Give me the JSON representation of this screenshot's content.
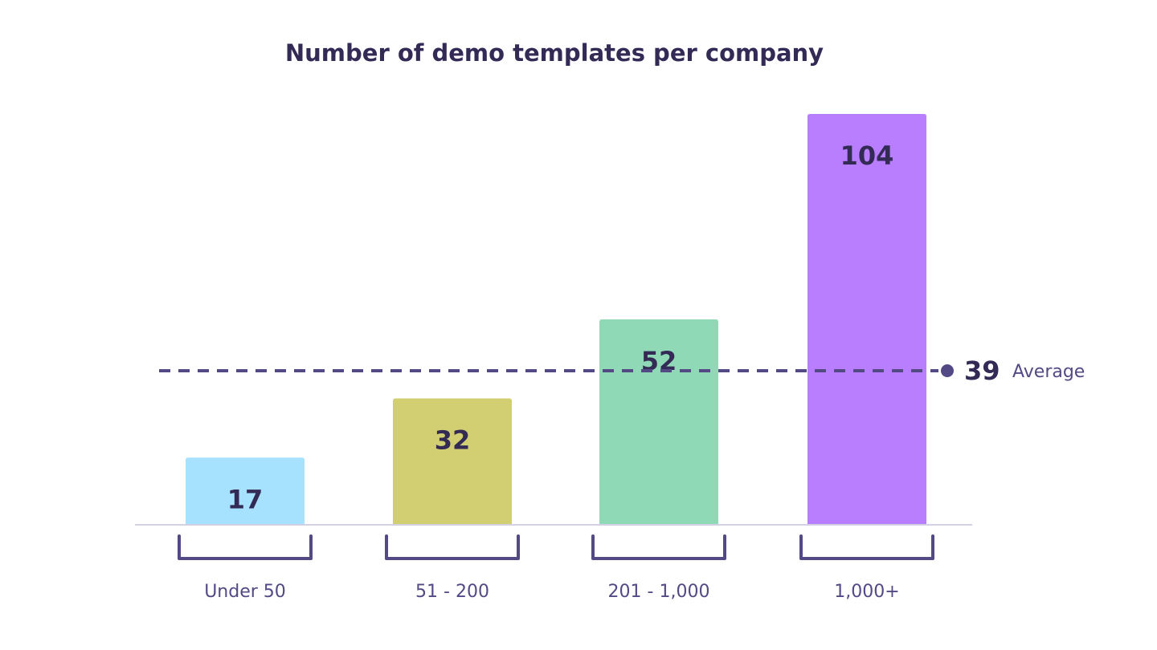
{
  "chart_data": {
    "type": "bar",
    "title": "Number of demo templates per company",
    "xlabel": "",
    "ylabel": "",
    "categories": [
      "Under 50",
      "51 - 200",
      "201 - 1,000",
      "1,000+"
    ],
    "values": [
      17,
      32,
      52,
      104
    ],
    "value_labels": [
      "17",
      "32",
      "52",
      "104"
    ],
    "bar_colors": [
      "#a6e1fe",
      "#d2cf72",
      "#90d9b7",
      "#b97efe"
    ],
    "ylim": [
      0,
      104
    ],
    "grid": false,
    "average": {
      "value": 39,
      "value_label": "39",
      "label": "Average"
    }
  },
  "colors": {
    "text": "#332a55",
    "category_text": "#524985",
    "bracket": "#524985",
    "average_line": "#524985",
    "baseline": "#d2d0e3"
  }
}
